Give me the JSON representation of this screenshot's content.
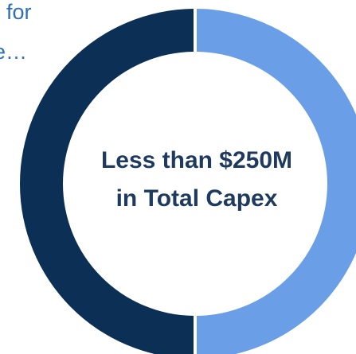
{
  "header_fragment": {
    "line1": "for",
    "line2": "e…"
  },
  "center_label": {
    "line1": "Less than $250M",
    "line2": "in Total Capex"
  },
  "colors": {
    "dark_segment": "#0B2F55",
    "light_segment": "#6A9FE8",
    "header_text": "#2E6FB7",
    "center_text": "#1F3A5F"
  },
  "chart_data": {
    "type": "pie",
    "style": "donut",
    "categories": [
      "",
      ""
    ],
    "values": [
      50,
      50
    ],
    "segment_colors": [
      "#6A9FE8",
      "#0B2F55"
    ],
    "title": "",
    "center_text": "Less than $250M in Total Capex",
    "legend": "none"
  }
}
